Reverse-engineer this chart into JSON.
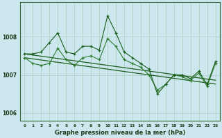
{
  "xlabel": "Graphe pression niveau de la mer (hPa)",
  "background_color": "#cce8ee",
  "grid_color": "#aaccbb",
  "line_dark": "#1a5c1a",
  "line_mid": "#2d7a2d",
  "ylim": [
    1005.8,
    1008.9
  ],
  "xlim": [
    -0.5,
    23.5
  ],
  "yticks": [
    1006,
    1007,
    1008
  ],
  "xticks": [
    0,
    1,
    2,
    3,
    4,
    5,
    6,
    7,
    8,
    9,
    10,
    11,
    12,
    13,
    14,
    15,
    16,
    17,
    18,
    19,
    20,
    21,
    22,
    23
  ],
  "series1": [
    1007.55,
    1007.55,
    1007.6,
    1007.85,
    1008.1,
    1007.6,
    1007.55,
    1007.75,
    1007.75,
    1007.65,
    1008.55,
    1008.1,
    1007.6,
    1007.45,
    1007.3,
    1007.15,
    1006.5,
    1006.75,
    1007.0,
    1007.0,
    1006.9,
    1007.1,
    1006.75,
    1007.35
  ],
  "series2": [
    1007.45,
    1007.3,
    1007.25,
    1007.3,
    1007.7,
    1007.4,
    1007.25,
    1007.45,
    1007.5,
    1007.4,
    1007.95,
    1007.75,
    1007.4,
    1007.3,
    1007.2,
    1007.0,
    1006.6,
    1006.75,
    1007.0,
    1006.95,
    1006.85,
    1007.05,
    1006.7,
    1007.3
  ],
  "trend1": [
    1007.55,
    1007.52,
    1007.49,
    1007.46,
    1007.43,
    1007.4,
    1007.37,
    1007.34,
    1007.31,
    1007.28,
    1007.25,
    1007.22,
    1007.19,
    1007.16,
    1007.13,
    1007.1,
    1007.07,
    1007.04,
    1007.01,
    1006.98,
    1006.95,
    1006.92,
    1006.89,
    1006.86
  ],
  "trend2": [
    1007.45,
    1007.42,
    1007.39,
    1007.36,
    1007.33,
    1007.3,
    1007.27,
    1007.24,
    1007.21,
    1007.18,
    1007.15,
    1007.12,
    1007.09,
    1007.06,
    1007.03,
    1007.0,
    1006.97,
    1006.94,
    1006.91,
    1006.88,
    1006.85,
    1006.82,
    1006.79,
    1006.76
  ]
}
